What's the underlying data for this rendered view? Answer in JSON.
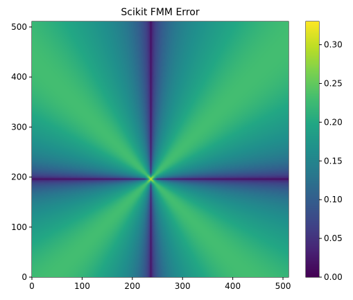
{
  "chart_data": {
    "type": "heatmap",
    "title": "Scikit FMM Error",
    "xlabel": "",
    "ylabel": "",
    "xlim": [
      0,
      511
    ],
    "ylim": [
      0,
      511
    ],
    "x_ticks": [
      "0",
      "100",
      "200",
      "300",
      "400",
      "500"
    ],
    "y_ticks": [
      "0",
      "100",
      "200",
      "300",
      "400",
      "500"
    ],
    "x_tick_values": [
      0,
      100,
      200,
      300,
      400,
      500
    ],
    "y_tick_values": [
      0,
      100,
      200,
      300,
      400,
      500
    ],
    "colormap": "viridis",
    "color_range": [
      0.0,
      0.33
    ],
    "colorbar_ticks": [
      "0.00",
      "0.05",
      "0.10",
      "0.15",
      "0.20",
      "0.25",
      "0.30"
    ],
    "colorbar_tick_values": [
      0.0,
      0.05,
      0.1,
      0.15,
      0.2,
      0.25,
      0.3
    ],
    "source_point": {
      "x": 237,
      "y": 196
    },
    "description_values": {
      "background_error": 0.21,
      "diagonal_error": 0.23,
      "axis_line_error": 0.0,
      "peak_error": 0.33
    }
  }
}
